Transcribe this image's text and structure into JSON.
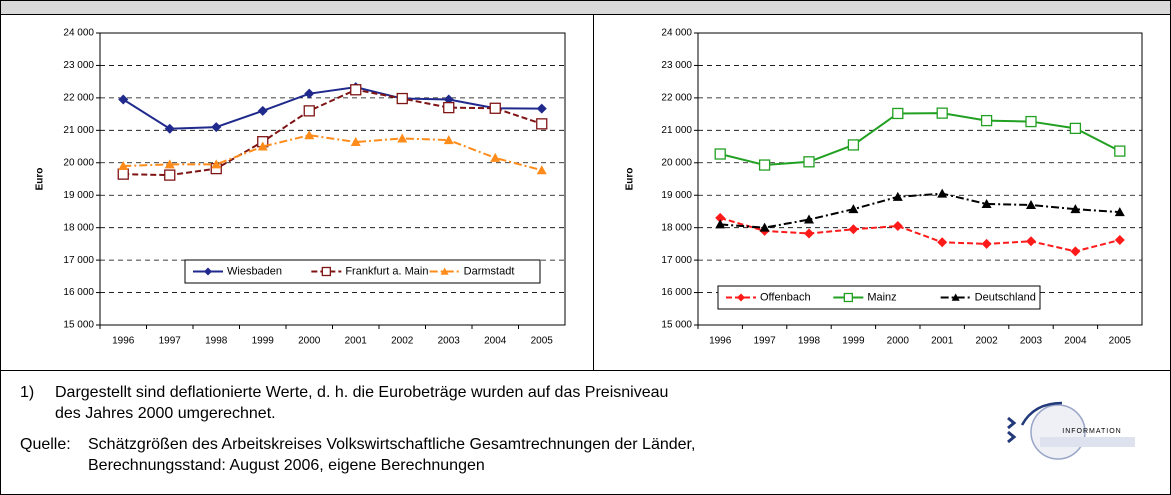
{
  "chart_data": [
    {
      "type": "line",
      "y_label": "Euro",
      "categories": [
        "1996",
        "1997",
        "1998",
        "1999",
        "2000",
        "2001",
        "2002",
        "2003",
        "2004",
        "2005"
      ],
      "ylim": [
        15000,
        24000
      ],
      "yticks": [
        {
          "value": 15000,
          "label": "15 000"
        },
        {
          "value": 16000,
          "label": "16 000"
        },
        {
          "value": 17000,
          "label": "17 000"
        },
        {
          "value": 18000,
          "label": "18 000"
        },
        {
          "value": 19000,
          "label": "19 000"
        },
        {
          "value": 20000,
          "label": "20 000"
        },
        {
          "value": 21000,
          "label": "21 000"
        },
        {
          "value": 22000,
          "label": "22 000"
        },
        {
          "value": 23000,
          "label": "23 000"
        },
        {
          "value": 24000,
          "label": "24 000"
        }
      ],
      "grid": true,
      "legend": "bottom",
      "series": [
        {
          "name": "Wiesbaden",
          "color": "#1f2a8c",
          "dash": "solid",
          "marker": "diamond",
          "values": [
            21950,
            21050,
            21100,
            21600,
            22130,
            22330,
            21980,
            21950,
            21680,
            21670
          ]
        },
        {
          "name": "Frankfurt a. Main",
          "color": "#7f1414",
          "dash": "dashed",
          "marker": "square-open",
          "values": [
            19650,
            19620,
            19820,
            20650,
            21600,
            22250,
            21980,
            21700,
            21680,
            21200
          ]
        },
        {
          "name": "Darmstadt",
          "color": "#ff8c1a",
          "dash": "dashdot",
          "marker": "triangle",
          "values": [
            19900,
            19950,
            19950,
            20500,
            20850,
            20640,
            20750,
            20700,
            20150,
            19770
          ]
        }
      ]
    },
    {
      "type": "line",
      "y_label": "Euro",
      "categories": [
        "1996",
        "1997",
        "1998",
        "1999",
        "2000",
        "2001",
        "2002",
        "2003",
        "2004",
        "2005"
      ],
      "ylim": [
        15000,
        24000
      ],
      "yticks": [
        {
          "value": 15000,
          "label": "15 000"
        },
        {
          "value": 16000,
          "label": "16 000"
        },
        {
          "value": 17000,
          "label": "17 000"
        },
        {
          "value": 18000,
          "label": "18 000"
        },
        {
          "value": 19000,
          "label": "19 000"
        },
        {
          "value": 20000,
          "label": "20 000"
        },
        {
          "value": 21000,
          "label": "21 000"
        },
        {
          "value": 22000,
          "label": "22 000"
        },
        {
          "value": 23000,
          "label": "23 000"
        },
        {
          "value": 24000,
          "label": "24 000"
        }
      ],
      "grid": true,
      "legend": "bottom",
      "series": [
        {
          "name": "Offenbach",
          "color": "#ff1a1a",
          "dash": "dashed",
          "marker": "diamond",
          "values": [
            18300,
            17900,
            17820,
            17950,
            18050,
            17550,
            17500,
            17580,
            17270,
            17620
          ]
        },
        {
          "name": "Mainz",
          "color": "#22a022",
          "dash": "solid",
          "marker": "square-open",
          "values": [
            20270,
            19930,
            20030,
            20550,
            21520,
            21530,
            21300,
            21270,
            21060,
            20360
          ]
        },
        {
          "name": "Deutschland",
          "color": "#000000",
          "dash": "dashdot",
          "marker": "triangle",
          "values": [
            18100,
            18000,
            18250,
            18570,
            18950,
            19050,
            18730,
            18700,
            18570,
            18480
          ]
        }
      ]
    }
  ],
  "footnote": {
    "marker": "1)",
    "lines": [
      "Dargestellt sind deflationierte Werte, d. h. die Eurobeträge wurden auf das Preisniveau",
      "des Jahres 2000 umgerechnet."
    ]
  },
  "source": {
    "label": "Quelle:",
    "lines": [
      "Schätzgrößen des Arbeitskreises Volkswirtschaftliche Gesamtrechnungen der Länder,",
      "Berechnungsstand: August 2006, eigene Berechnungen"
    ]
  },
  "logo": {
    "text": "INFORMATION"
  }
}
